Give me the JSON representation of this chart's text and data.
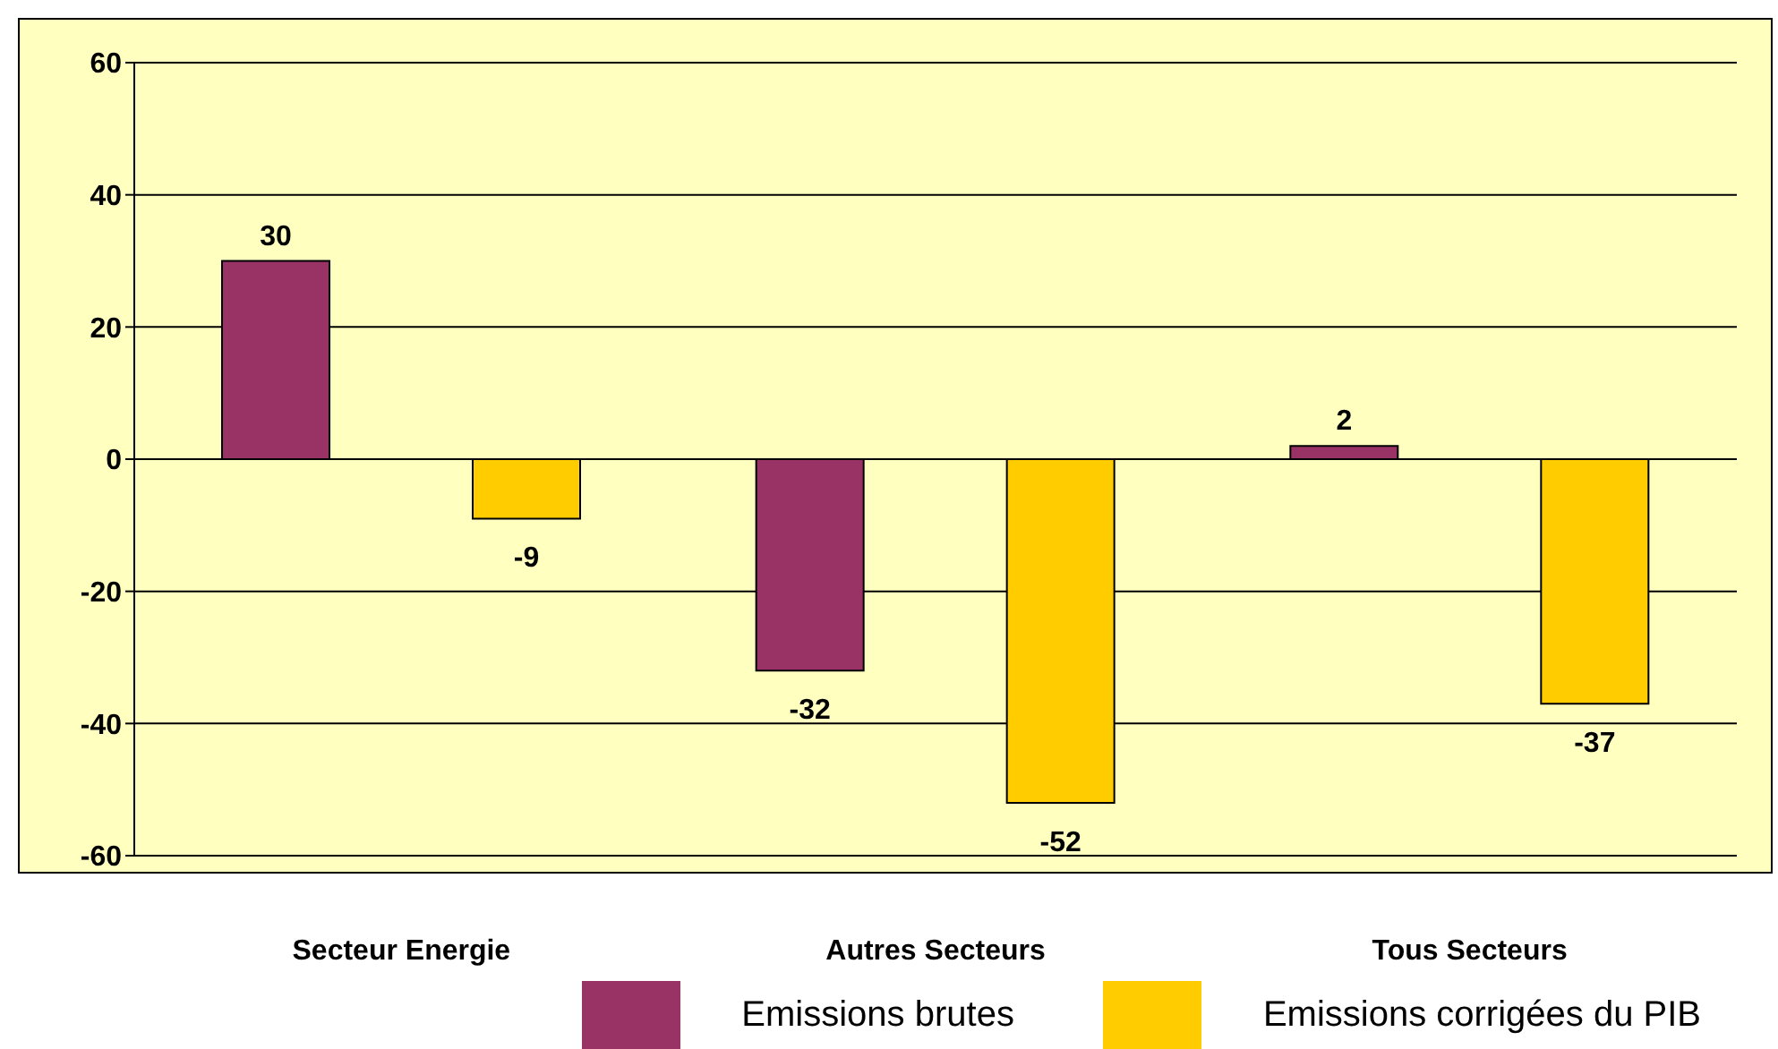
{
  "chart_data": {
    "type": "bar",
    "categories": [
      "Secteur Energie",
      "Autres Secteurs",
      "Tous Secteurs"
    ],
    "series": [
      {
        "name": "Emissions brutes",
        "color": "#993366",
        "values": [
          30,
          -32,
          2
        ]
      },
      {
        "name": "Emissions corrigées du PIB",
        "color": "#ffcc00",
        "values": [
          -9,
          -52,
          -37
        ]
      }
    ],
    "ylim": [
      -60,
      60
    ],
    "yticks": [
      -60,
      -40,
      -20,
      0,
      20,
      40,
      60
    ],
    "grid": "y",
    "legend": "bottom",
    "data_labels": true
  }
}
